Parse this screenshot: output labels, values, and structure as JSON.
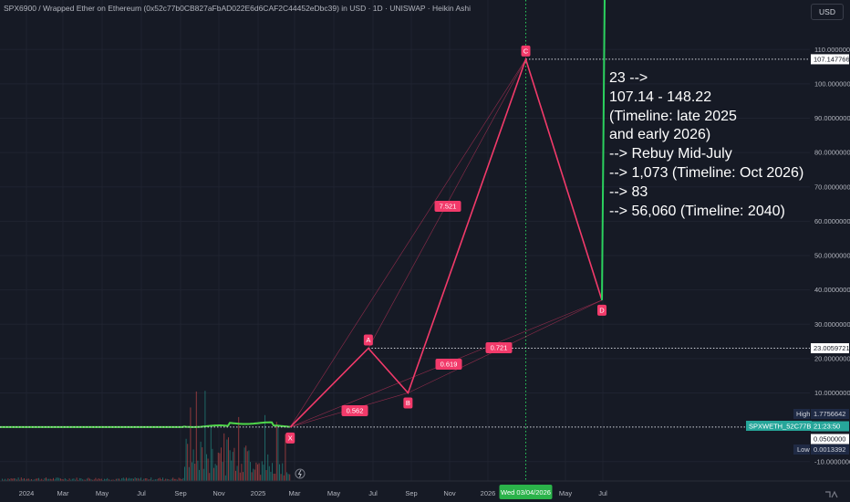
{
  "header": {
    "title": "SPX6900 / Wrapped Ether on Ethereum (0x52c77b0CB827aFbAD022E6d6CAF2C44452eDbc39) in USD · 1D · UNISWAP · Heikin Ashi",
    "currency_button": "USD"
  },
  "annotation_lines": [
    "23 -->",
    "107.14 - 148.22",
    "(Timeline: late 2025",
    "and early 2026)",
    "--> Rebuy Mid-July",
    "--> 1,073 (Timeline: Oct 2026)",
    "--> 83",
    "--> 56,060 (Timeline: 2040)"
  ],
  "price_axis": {
    "labels": [
      {
        "v": 110,
        "t": "110.0000000"
      },
      {
        "v": 100,
        "t": "100.0000000"
      },
      {
        "v": 90,
        "t": "90.0000000"
      },
      {
        "v": 80,
        "t": "80.0000000"
      },
      {
        "v": 70,
        "t": "70.0000000"
      },
      {
        "v": 60,
        "t": "60.0000000"
      },
      {
        "v": 50,
        "t": "50.0000000"
      },
      {
        "v": 40,
        "t": "40.0000000"
      },
      {
        "v": 30,
        "t": "30.0000000"
      },
      {
        "v": 20,
        "t": "20.0000000"
      },
      {
        "v": 10,
        "t": "10.0000000"
      },
      {
        "v": -10,
        "t": "-10.0000000"
      }
    ],
    "tags": {
      "c_level": "107.1477663",
      "b_level": "23.0059721",
      "high_label": "High",
      "high_value": "1.7756642",
      "symbol": "SPXWETH_52C77B.USD",
      "countdown": "21:23:50",
      "last": "0.0500000",
      "low_label": "Low",
      "low_value": "0.0013392"
    }
  },
  "time_axis": {
    "labels": [
      "2024",
      "Mar",
      "May",
      "Jul",
      "Sep",
      "Nov",
      "2025",
      "Mar",
      "May",
      "Jul",
      "Sep",
      "Nov",
      "2026",
      "May",
      "Jul"
    ],
    "highlight": "Wed 03/04/2026"
  },
  "chart_data": {
    "type": "line",
    "title": "SPX6900 / Wrapped Ether on Ethereum (0x52c77b0CB827aFbAD022E6d6CAF2C44452eDbc39) in USD · 1D · UNISWAP · Heikin Ashi",
    "y_range": [
      -13,
      124
    ],
    "pattern": {
      "points": [
        {
          "name": "X",
          "date": "2025-03",
          "value": 0.05
        },
        {
          "name": "A",
          "date": "2025-07",
          "value": 23
        },
        {
          "name": "B",
          "date": "2025-09",
          "value": 10
        },
        {
          "name": "C",
          "date": "2026-03-04",
          "value": 107.15
        },
        {
          "name": "D",
          "date": "2026-07",
          "value": 37
        }
      ],
      "ratios": [
        "0.562",
        "7.521",
        "0.619",
        "0.721"
      ]
    },
    "projection": {
      "from": {
        "date": "2026-07",
        "value": 37
      },
      "direction": "up"
    },
    "levels": [
      107.1477663,
      23.0059721,
      0.05
    ],
    "colors": {
      "pattern": "#f23a6a",
      "projection": "#2bd15e",
      "price": "#4fd64a",
      "grid": "#1f2330",
      "background": "#161a25"
    }
  }
}
